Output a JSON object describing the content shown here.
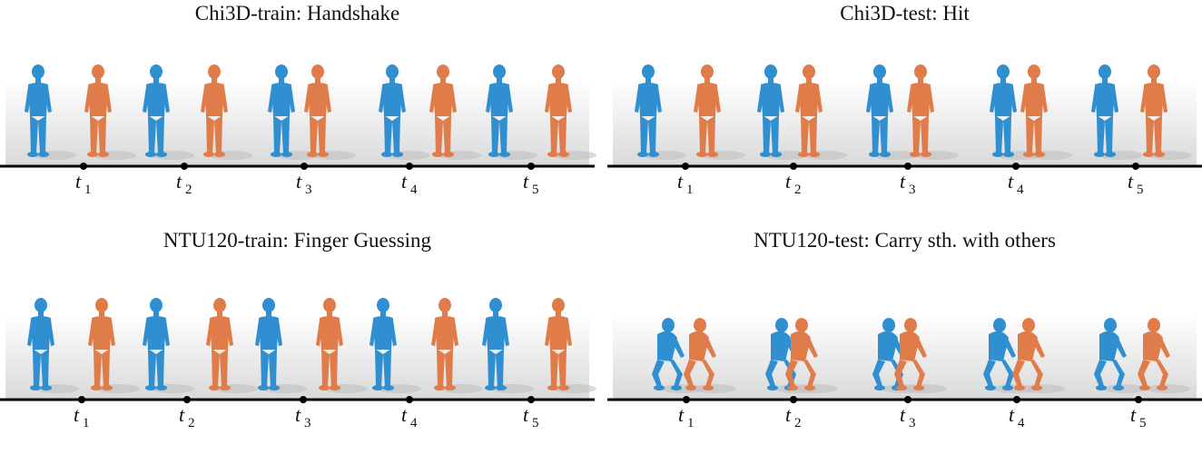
{
  "figure": {
    "panels": [
      {
        "id": "chi3d-train",
        "title": "Chi3D-train: Handshake",
        "time_labels": [
          "t",
          "t",
          "t",
          "t",
          "t"
        ],
        "time_subscripts": [
          "1",
          "2",
          "3",
          "4",
          "5"
        ],
        "person_a_color": "#2f8fd0",
        "person_b_color": "#e07c4a"
      },
      {
        "id": "chi3d-test",
        "title": "Chi3D-test: Hit",
        "time_labels": [
          "t",
          "t",
          "t",
          "t",
          "t"
        ],
        "time_subscripts": [
          "1",
          "2",
          "3",
          "4",
          "5"
        ],
        "person_a_color": "#2f8fd0",
        "person_b_color": "#e07c4a"
      },
      {
        "id": "ntu120-train",
        "title": "NTU120-train: Finger Guessing",
        "time_labels": [
          "t",
          "t",
          "t",
          "t",
          "t"
        ],
        "time_subscripts": [
          "1",
          "2",
          "3",
          "4",
          "5"
        ],
        "person_a_color": "#2f8fd0",
        "person_b_color": "#e07c4a"
      },
      {
        "id": "ntu120-test",
        "title": "NTU120-test: Carry sth. with others",
        "time_labels": [
          "t",
          "t",
          "t",
          "t",
          "t"
        ],
        "time_subscripts": [
          "1",
          "2",
          "3",
          "4",
          "5"
        ],
        "person_a_color": "#2f8fd0",
        "person_b_color": "#e07c4a"
      }
    ]
  }
}
